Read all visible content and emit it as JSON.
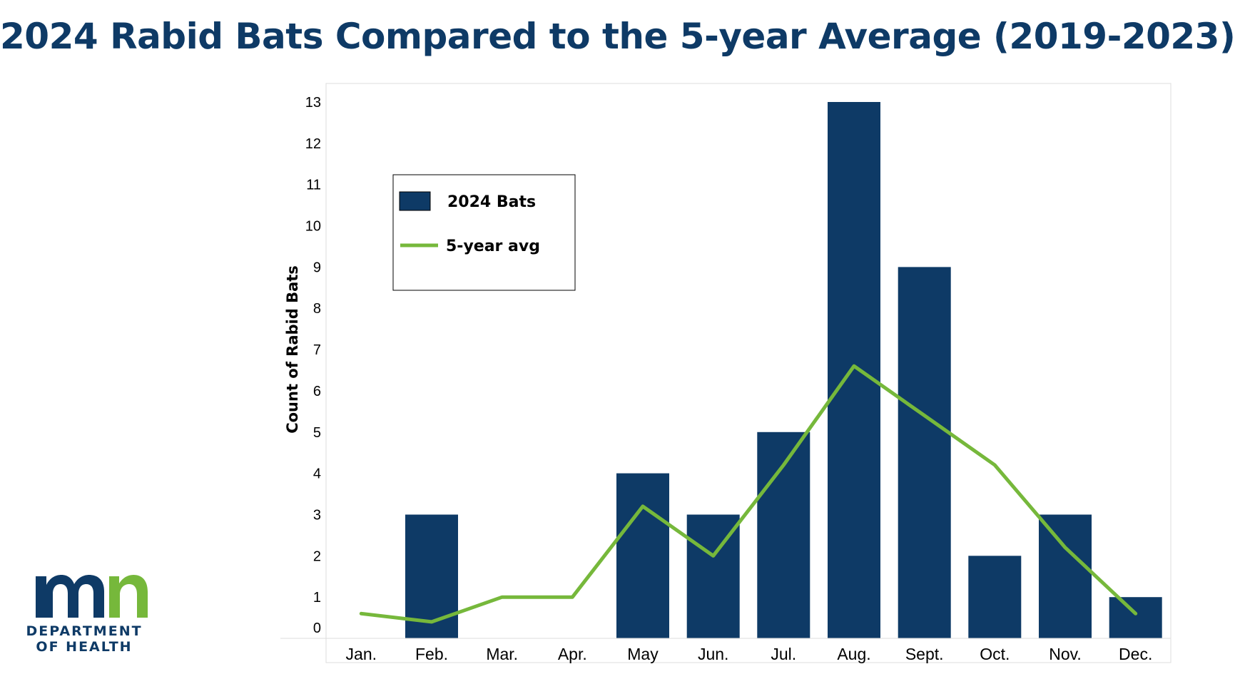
{
  "chart_data": {
    "type": "bar",
    "title": "2024 Rabid Bats Compared to the 5-year Average (2019-2023)",
    "xlabel": "",
    "ylabel": "Count of Rabid Bats",
    "categories": [
      "Jan.",
      "Feb.",
      "Mar.",
      "Apr.",
      "May",
      "Jun.",
      "Jul.",
      "Aug.",
      "Sept.",
      "Oct.",
      "Nov.",
      "Dec."
    ],
    "yticks": [
      0,
      1,
      2,
      3,
      4,
      5,
      6,
      7,
      8,
      9,
      10,
      11,
      12,
      13
    ],
    "ylim": [
      0,
      13.4
    ],
    "grid": false,
    "legend_position": "top-left",
    "series": [
      {
        "name": "2024 Bats",
        "kind": "bar",
        "color": "#0e3a66",
        "values": [
          0,
          3,
          0,
          0,
          4,
          3,
          5,
          13,
          9,
          2,
          3,
          1
        ]
      },
      {
        "name": "5-year avg",
        "kind": "line",
        "color": "#76b83b",
        "values": [
          0.6,
          0.4,
          1.0,
          1.0,
          3.2,
          2.0,
          4.2,
          6.6,
          5.4,
          4.2,
          2.2,
          0.6
        ]
      }
    ]
  },
  "logo": {
    "mark": "mn",
    "line1": "DEPARTMENT",
    "line2": "OF HEALTH",
    "navy": "#0e3a66",
    "green": "#76b83b"
  }
}
